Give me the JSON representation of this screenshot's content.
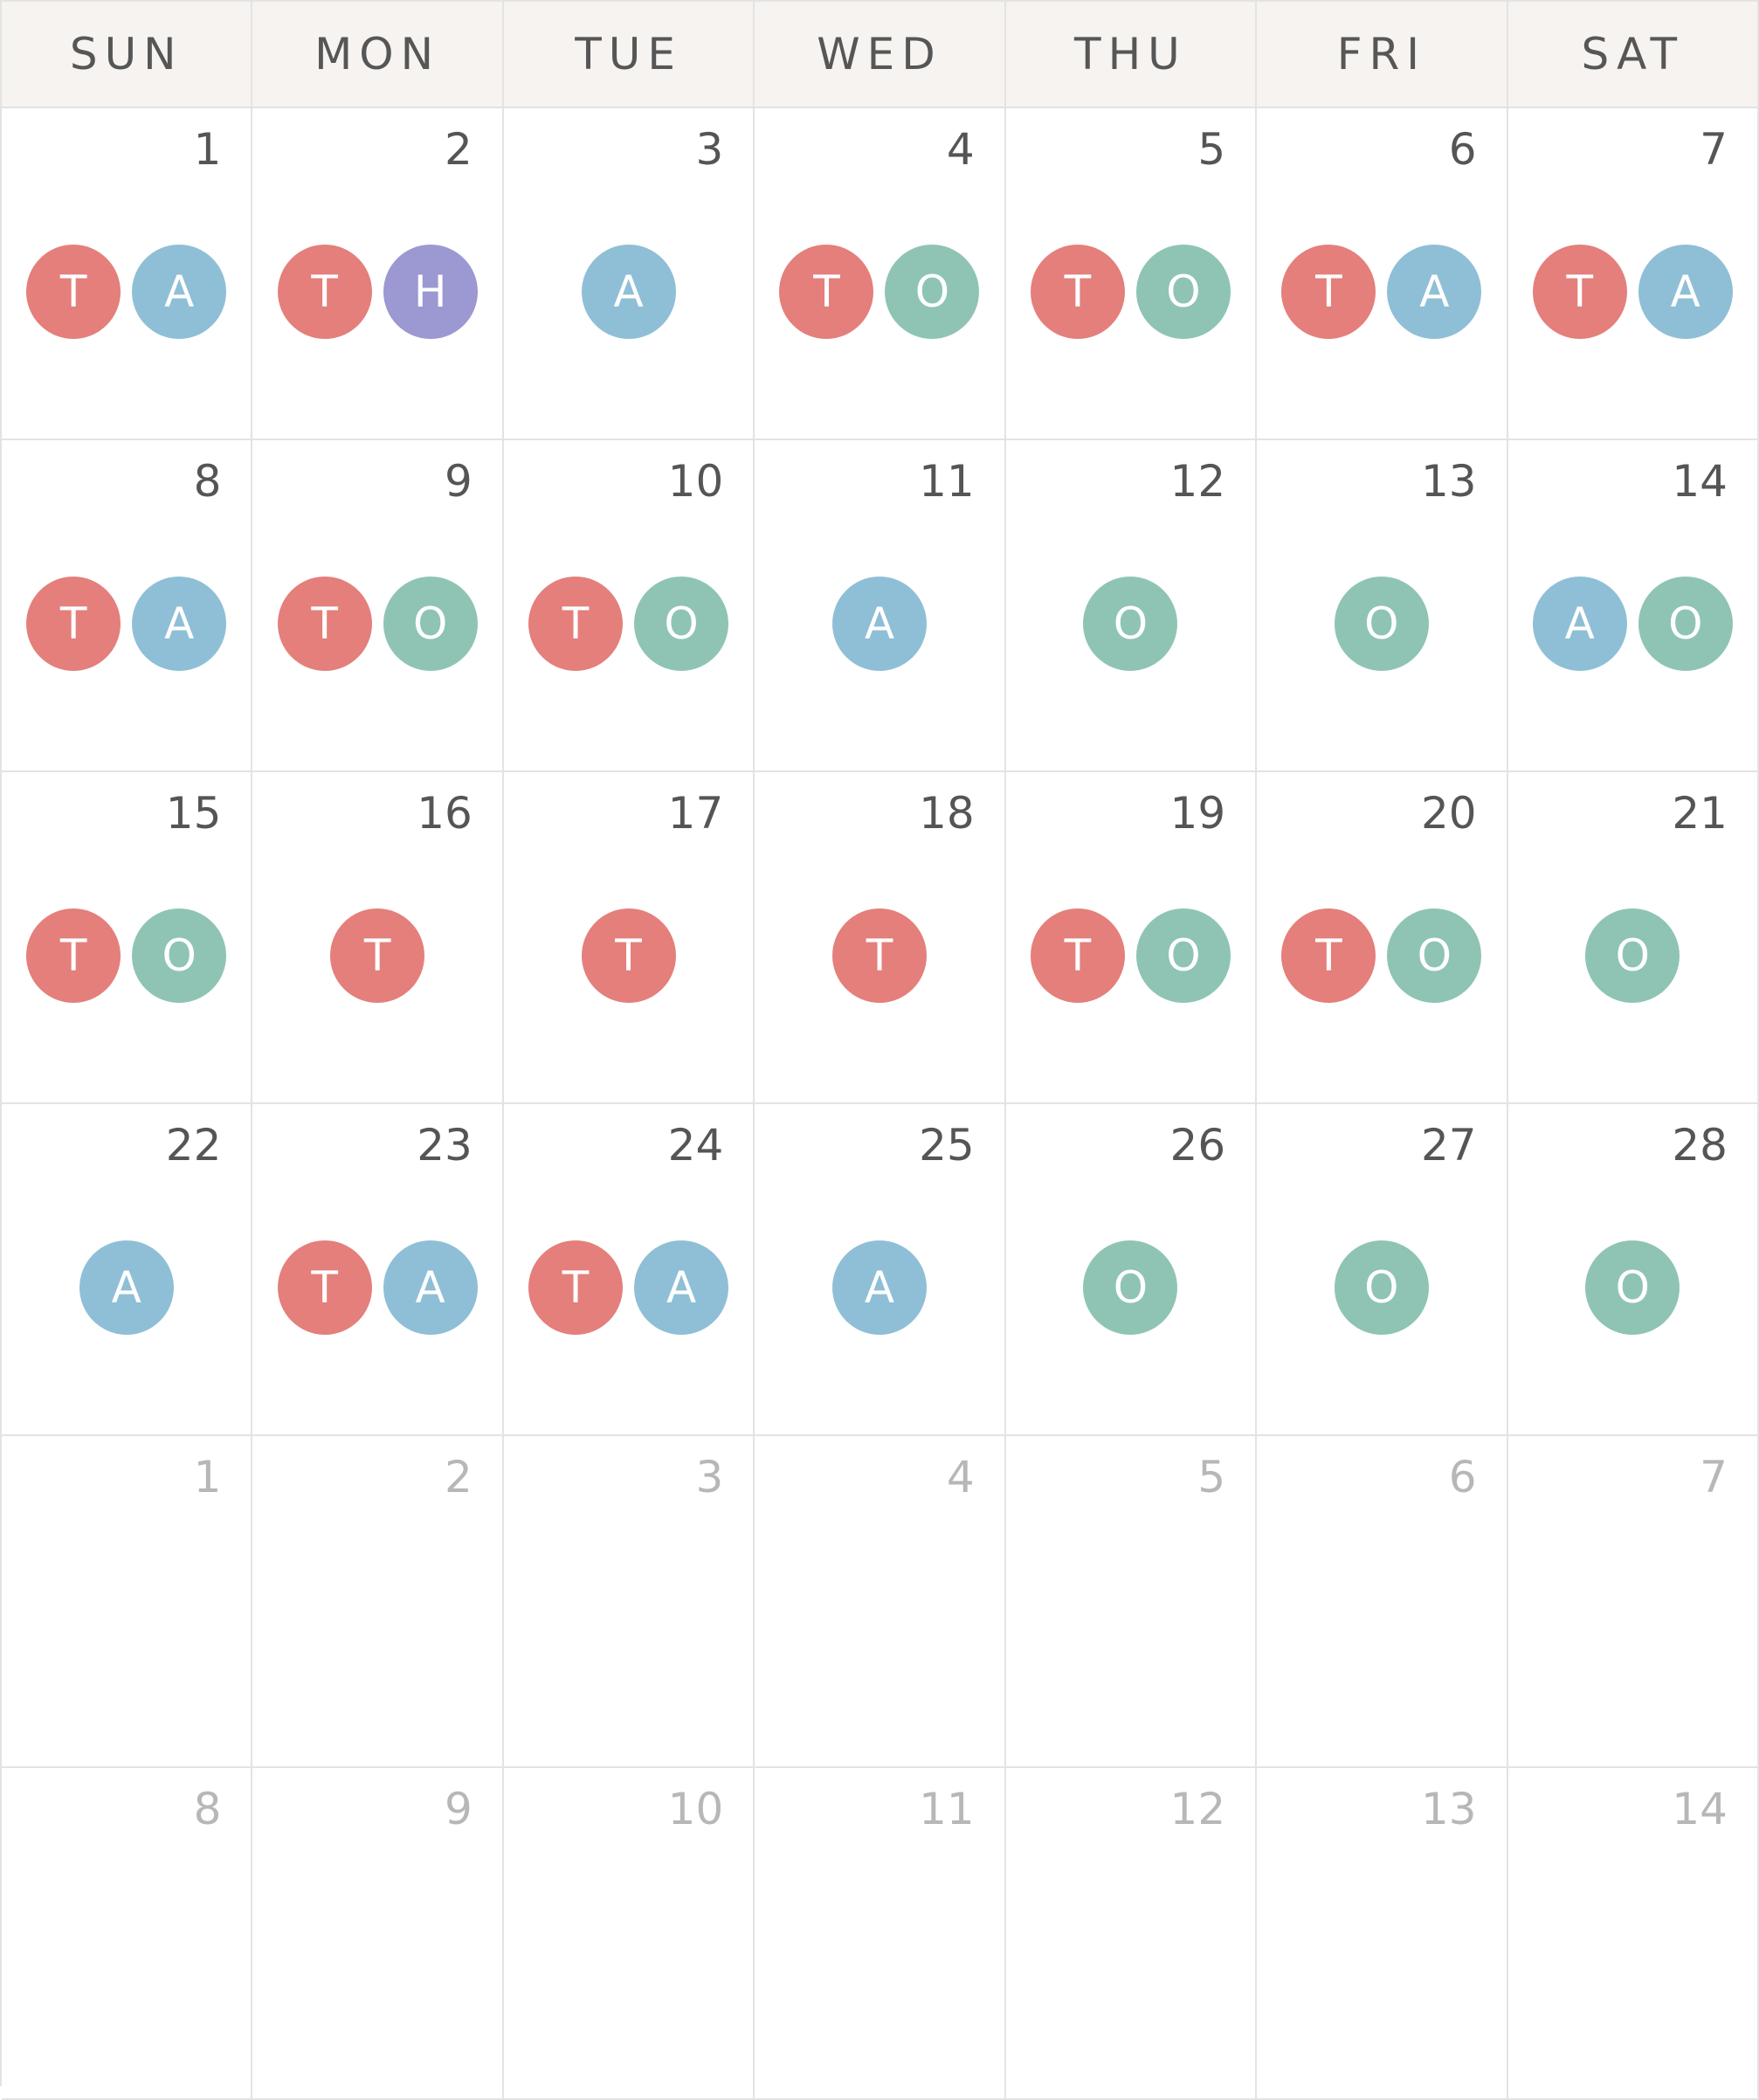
{
  "weekdays": [
    "SUN",
    "MON",
    "TUE",
    "WED",
    "THU",
    "FRI",
    "SAT"
  ],
  "colors": {
    "T": "#e47f7b",
    "A": "#8fbfd6",
    "O": "#8fc4b5",
    "H": "#9b98d2"
  },
  "days": [
    {
      "number": "1",
      "muted": false,
      "events": [
        "T",
        "A"
      ]
    },
    {
      "number": "2",
      "muted": false,
      "events": [
        "T",
        "H"
      ]
    },
    {
      "number": "3",
      "muted": false,
      "events": [
        "A"
      ]
    },
    {
      "number": "4",
      "muted": false,
      "events": [
        "T",
        "O"
      ]
    },
    {
      "number": "5",
      "muted": false,
      "events": [
        "T",
        "O"
      ]
    },
    {
      "number": "6",
      "muted": false,
      "events": [
        "T",
        "A"
      ]
    },
    {
      "number": "7",
      "muted": false,
      "events": [
        "T",
        "A"
      ]
    },
    {
      "number": "8",
      "muted": false,
      "events": [
        "T",
        "A"
      ]
    },
    {
      "number": "9",
      "muted": false,
      "events": [
        "T",
        "O"
      ]
    },
    {
      "number": "10",
      "muted": false,
      "events": [
        "T",
        "O"
      ]
    },
    {
      "number": "11",
      "muted": false,
      "events": [
        "A"
      ]
    },
    {
      "number": "12",
      "muted": false,
      "events": [
        "O"
      ]
    },
    {
      "number": "13",
      "muted": false,
      "events": [
        "O"
      ]
    },
    {
      "number": "14",
      "muted": false,
      "events": [
        "A",
        "O"
      ]
    },
    {
      "number": "15",
      "muted": false,
      "events": [
        "T",
        "O"
      ]
    },
    {
      "number": "16",
      "muted": false,
      "events": [
        "T"
      ]
    },
    {
      "number": "17",
      "muted": false,
      "events": [
        "T"
      ]
    },
    {
      "number": "18",
      "muted": false,
      "events": [
        "T"
      ]
    },
    {
      "number": "19",
      "muted": false,
      "events": [
        "T",
        "O"
      ]
    },
    {
      "number": "20",
      "muted": false,
      "events": [
        "T",
        "O"
      ]
    },
    {
      "number": "21",
      "muted": false,
      "events": [
        "O"
      ]
    },
    {
      "number": "22",
      "muted": false,
      "events": [
        "A"
      ]
    },
    {
      "number": "23",
      "muted": false,
      "events": [
        "T",
        "A"
      ]
    },
    {
      "number": "24",
      "muted": false,
      "events": [
        "T",
        "A"
      ]
    },
    {
      "number": "25",
      "muted": false,
      "events": [
        "A"
      ]
    },
    {
      "number": "26",
      "muted": false,
      "events": [
        "O"
      ]
    },
    {
      "number": "27",
      "muted": false,
      "events": [
        "O"
      ]
    },
    {
      "number": "28",
      "muted": false,
      "events": [
        "O"
      ]
    },
    {
      "number": "1",
      "muted": true,
      "events": []
    },
    {
      "number": "2",
      "muted": true,
      "events": []
    },
    {
      "number": "3",
      "muted": true,
      "events": []
    },
    {
      "number": "4",
      "muted": true,
      "events": []
    },
    {
      "number": "5",
      "muted": true,
      "events": []
    },
    {
      "number": "6",
      "muted": true,
      "events": []
    },
    {
      "number": "7",
      "muted": true,
      "events": []
    },
    {
      "number": "8",
      "muted": true,
      "events": []
    },
    {
      "number": "9",
      "muted": true,
      "events": []
    },
    {
      "number": "10",
      "muted": true,
      "events": []
    },
    {
      "number": "11",
      "muted": true,
      "events": []
    },
    {
      "number": "12",
      "muted": true,
      "events": []
    },
    {
      "number": "13",
      "muted": true,
      "events": []
    },
    {
      "number": "14",
      "muted": true,
      "events": []
    }
  ]
}
